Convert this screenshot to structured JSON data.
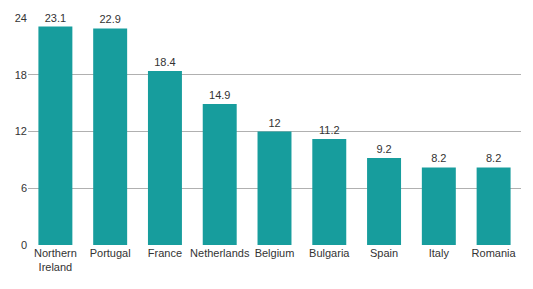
{
  "chart_data": {
    "type": "bar",
    "categories": [
      "Northern Ireland",
      "Portugal",
      "France",
      "Netherlands",
      "Belgium",
      "Bulgaria",
      "Spain",
      "Italy",
      "Romania"
    ],
    "values": [
      23.1,
      22.9,
      18.4,
      14.9,
      12,
      11.2,
      9.2,
      8.2,
      8.2
    ],
    "color": "#179d9d",
    "ylim": [
      0,
      24
    ],
    "yticks": [
      0,
      6,
      12,
      18,
      24
    ],
    "grid": true,
    "data_labels": true
  }
}
